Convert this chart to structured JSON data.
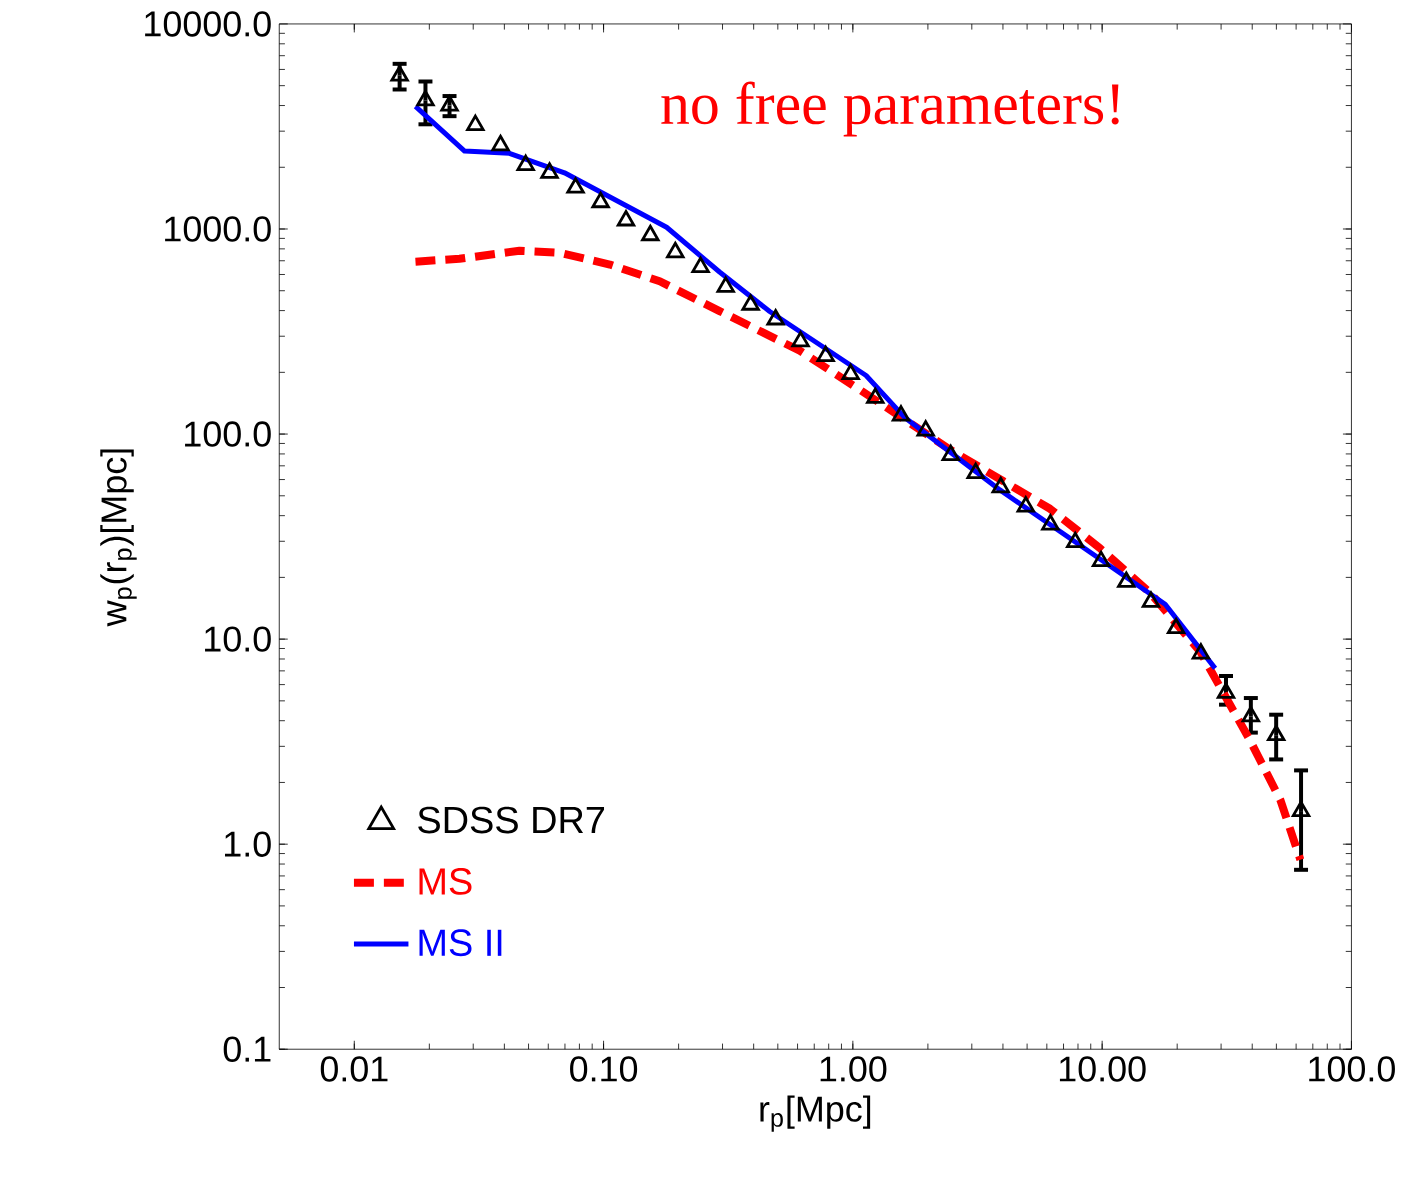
{
  "chart_data": {
    "type": "line",
    "xlabel": "r$_{p}$[Mpc]",
    "ylabel": "w$_{p}$(r$_{p}$)[Mpc]",
    "log": "xy",
    "legend": "bottom left",
    "xlim": [
      0.005,
      100
    ],
    "ylim": [
      0.1,
      10000
    ],
    "xticks": [
      {
        "value": 0.01,
        "label": "0.01"
      },
      {
        "value": 0.1,
        "label": "0.10"
      },
      {
        "value": 1,
        "label": "1.00"
      },
      {
        "value": 10,
        "label": "10.00"
      },
      {
        "value": 100,
        "label": "100.0"
      }
    ],
    "yticks": [
      {
        "value": 0.1,
        "label": "0.1"
      },
      {
        "value": 1,
        "label": "1.0"
      },
      {
        "value": 10,
        "label": "10.0"
      },
      {
        "value": 100,
        "label": "100.0"
      },
      {
        "value": 1000,
        "label": "1000.0"
      },
      {
        "value": 10000,
        "label": "10000.0"
      }
    ],
    "annotations": [
      "no free parameters!"
    ],
    "series": [
      {
        "name": "SDSS DR7",
        "type": "scatter",
        "marker": "triangle",
        "color": "#000000",
        "x": [
          0.0152,
          0.0193,
          0.0241,
          0.0306,
          0.0386,
          0.0487,
          0.0607,
          0.0772,
          0.0973,
          0.123,
          0.154,
          0.194,
          0.245,
          0.309,
          0.389,
          0.49,
          0.617,
          0.778,
          0.98,
          1.23,
          1.56,
          1.96,
          2.47,
          3.11,
          3.92,
          4.94,
          6.2,
          7.8,
          9.9,
          12.5,
          15.7,
          19.8,
          24.9,
          31.4,
          39.5,
          49.9,
          62.8
        ],
        "values": [
          5590,
          4240,
          4000,
          3210,
          2560,
          2050,
          1880,
          1590,
          1350,
          1100,
          932,
          770,
          652,
          522,
          427,
          362,
          283,
          240,
          196,
          150,
          123,
          104,
          79,
          64.5,
          55,
          44.3,
          36.2,
          29.7,
          24,
          19,
          15.2,
          11.3,
          8.5,
          5.47,
          4.2,
          3.4,
          1.45
        ],
        "errors": [
          800,
          1000,
          450,
          null,
          null,
          null,
          null,
          null,
          null,
          null,
          null,
          null,
          null,
          null,
          null,
          null,
          null,
          null,
          null,
          null,
          null,
          null,
          null,
          null,
          null,
          null,
          null,
          null,
          null,
          null,
          null,
          null,
          null,
          [
            4.79,
            6.61
          ],
          [
            3.5,
            5.16
          ],
          [
            2.59,
            4.28
          ],
          [
            0.75,
            2.29
          ]
        ]
      },
      {
        "name": "MS",
        "type": "line",
        "line_style": "dashed",
        "color": "#ff0000",
        "x": [
          0.0176,
          0.0264,
          0.046,
          0.0665,
          0.106,
          0.168,
          0.292,
          0.612,
          1.07,
          2.45,
          6.18,
          9.82,
          15.6,
          24.8,
          39.3,
          51.9,
          62.4
        ],
        "values": [
          693,
          716,
          783,
          766,
          671,
          556,
          398,
          255,
          164,
          84.1,
          43.2,
          27.7,
          16.8,
          8.65,
          3.19,
          1.64,
          0.84
        ]
      },
      {
        "name": "MS II",
        "type": "line",
        "line_style": "solid",
        "color": "#0000ff",
        "x": [
          0.0176,
          0.0277,
          0.0419,
          0.0697,
          0.179,
          0.292,
          0.464,
          1.13,
          1.62,
          3.89,
          9.8,
          17.9,
          28.4
        ],
        "values": [
          3960,
          2400,
          2340,
          1880,
          1020,
          617,
          396,
          193,
          120,
          53.4,
          24.6,
          14.8,
          7.2
        ]
      }
    ]
  }
}
